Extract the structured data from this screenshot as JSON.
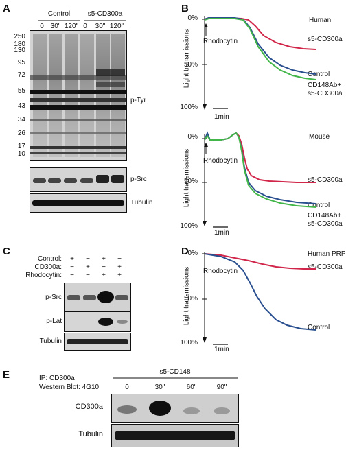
{
  "panelA": {
    "label": "A",
    "groups": [
      "Control",
      "s5-CD300a"
    ],
    "lanes": [
      "0",
      "30\"",
      "120\"",
      "0",
      "30\"",
      "120\""
    ],
    "markers": [
      "250",
      "180",
      "130",
      "95",
      "72",
      "55",
      "43",
      "34",
      "26",
      "17",
      "10"
    ],
    "blots": [
      "p-Tyr",
      "p-Src",
      "Tubulin"
    ]
  },
  "panelB": {
    "label": "B",
    "top": {
      "species": "Human",
      "ylabel": "Light transmissions",
      "ticks": [
        "0%",
        "50%",
        "100%"
      ],
      "agonist": "Rhodocytin",
      "scale": "1min",
      "series": [
        "s5-CD300a",
        "Control",
        "CD148Ab+\ns5-CD300a"
      ]
    },
    "bottom": {
      "species": "Mouse",
      "ylabel": "Light transmissions",
      "ticks": [
        "0%",
        "50%",
        "100%"
      ],
      "agonist": "Rhodocytin",
      "scale": "1min",
      "series": [
        "s5-CD300a",
        "Control",
        "CD148Ab+\ns5-CD300a"
      ]
    }
  },
  "panelC": {
    "label": "C",
    "rows": [
      {
        "name": "Control:",
        "signs": [
          "+",
          "−",
          "+",
          "−"
        ]
      },
      {
        "name": "CD300a:",
        "signs": [
          "−",
          "+",
          "−",
          "+"
        ]
      },
      {
        "name": "Rhodocytin:",
        "signs": [
          "−",
          "−",
          "+",
          "+"
        ]
      }
    ],
    "blots": [
      "p-Src",
      "p-Lat",
      "Tubulin"
    ]
  },
  "panelD": {
    "label": "D",
    "title": "Human PRP",
    "ylabel": "Light transmissions",
    "ticks": [
      "0%",
      "50%",
      "100%"
    ],
    "agonist": "Rhodocytin",
    "scale": "1min",
    "series": [
      "s5-CD300a",
      "Control"
    ]
  },
  "panelE": {
    "label": "E",
    "ip": "IP: CD300a",
    "wb": "Western Blot: 4G10",
    "group": "s5-CD148",
    "lanes": [
      "0",
      "30\"",
      "60\"",
      "90\""
    ],
    "blots": [
      "CD300a",
      "Tubulin"
    ]
  },
  "colors": {
    "red": "#d1264a",
    "blue": "#2a4f8f",
    "green": "#43b649"
  }
}
